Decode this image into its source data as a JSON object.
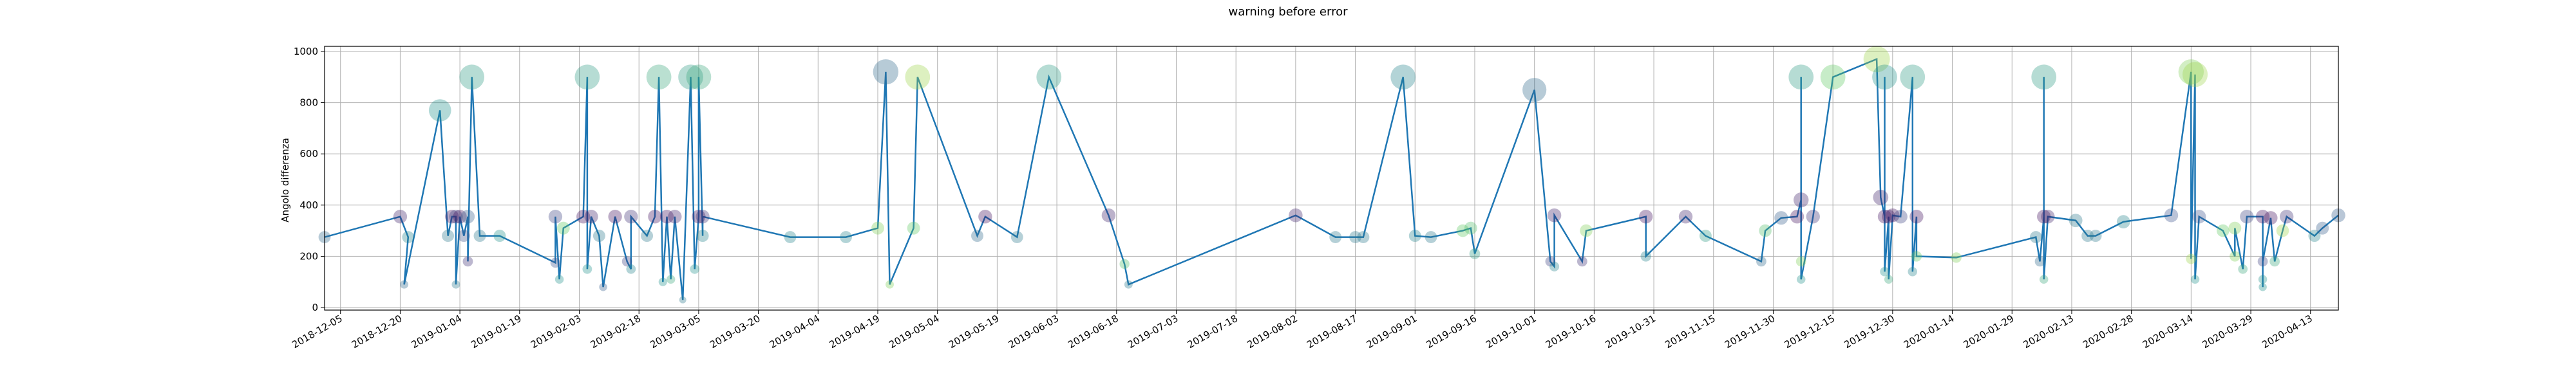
{
  "chart_data": {
    "type": "scatter",
    "title": "warning before error",
    "xlabel": "",
    "ylabel": "Angolo differenza",
    "xlim": [
      "2018-12-01",
      "2020-04-20"
    ],
    "ylim": [
      -10,
      1020
    ],
    "grid": true,
    "x_ticks": [
      "2018-12-05",
      "2018-12-20",
      "2019-01-04",
      "2019-01-19",
      "2019-02-03",
      "2019-02-18",
      "2019-03-05",
      "2019-03-20",
      "2019-04-04",
      "2019-04-19",
      "2019-05-04",
      "2019-05-19",
      "2019-06-03",
      "2019-06-18",
      "2019-07-03",
      "2019-07-18",
      "2019-08-02",
      "2019-08-17",
      "2019-09-01",
      "2019-09-16",
      "2019-10-01",
      "2019-10-16",
      "2019-10-31",
      "2019-11-15",
      "2019-11-30",
      "2019-12-15",
      "2019-12-30",
      "2020-01-14",
      "2020-01-29",
      "2020-02-13",
      "2020-02-28",
      "2020-03-14",
      "2020-03-29",
      "2020-04-13"
    ],
    "y_ticks": [
      0,
      200,
      400,
      600,
      800,
      1000
    ],
    "line_color": "#1f77b4",
    "colormap": [
      "#440154",
      "#3b528b",
      "#21918c",
      "#5ec962",
      "#fde725"
    ],
    "points": [
      {
        "x": "2018-12-01",
        "y": 275,
        "c": 0.35
      },
      {
        "x": "2018-12-20",
        "y": 355,
        "c": 0.1
      },
      {
        "x": "2018-12-22",
        "y": 275,
        "c": 0.45
      },
      {
        "x": "2018-12-21",
        "y": 90,
        "c": 0.35
      },
      {
        "x": "2018-12-30",
        "y": 770,
        "c": 0.5
      },
      {
        "x": "2019-01-01",
        "y": 280,
        "c": 0.4
      },
      {
        "x": "2019-01-02",
        "y": 355,
        "c": 0.05
      },
      {
        "x": "2019-01-03",
        "y": 355,
        "c": 0.2
      },
      {
        "x": "2019-01-03",
        "y": 90,
        "c": 0.4
      },
      {
        "x": "2019-01-04",
        "y": 355,
        "c": 0.05
      },
      {
        "x": "2019-01-05",
        "y": 280,
        "c": 0.25
      },
      {
        "x": "2019-01-06",
        "y": 355,
        "c": 0.3
      },
      {
        "x": "2019-01-06",
        "y": 180,
        "c": 0.15
      },
      {
        "x": "2019-01-07",
        "y": 900,
        "c": 0.55
      },
      {
        "x": "2019-01-09",
        "y": 280,
        "c": 0.4
      },
      {
        "x": "2019-01-14",
        "y": 280,
        "c": 0.5
      },
      {
        "x": "2019-01-28",
        "y": 175,
        "c": 0.25
      },
      {
        "x": "2019-01-28",
        "y": 355,
        "c": 0.2
      },
      {
        "x": "2019-01-29",
        "y": 110,
        "c": 0.5
      },
      {
        "x": "2019-01-30",
        "y": 310,
        "c": 0.75
      },
      {
        "x": "2019-02-04",
        "y": 355,
        "c": 0.05
      },
      {
        "x": "2019-02-05",
        "y": 900,
        "c": 0.55
      },
      {
        "x": "2019-02-05",
        "y": 150,
        "c": 0.5
      },
      {
        "x": "2019-02-06",
        "y": 355,
        "c": 0.1
      },
      {
        "x": "2019-02-08",
        "y": 280,
        "c": 0.4
      },
      {
        "x": "2019-02-09",
        "y": 80,
        "c": 0.3
      },
      {
        "x": "2019-02-12",
        "y": 355,
        "c": 0.05
      },
      {
        "x": "2019-02-15",
        "y": 180,
        "c": 0.2
      },
      {
        "x": "2019-02-16",
        "y": 150,
        "c": 0.45
      },
      {
        "x": "2019-02-16",
        "y": 355,
        "c": 0.15
      },
      {
        "x": "2019-02-20",
        "y": 280,
        "c": 0.4
      },
      {
        "x": "2019-02-22",
        "y": 355,
        "c": 0.05
      },
      {
        "x": "2019-02-23",
        "y": 900,
        "c": 0.6
      },
      {
        "x": "2019-02-24",
        "y": 100,
        "c": 0.5
      },
      {
        "x": "2019-02-25",
        "y": 355,
        "c": 0.05
      },
      {
        "x": "2019-02-26",
        "y": 110,
        "c": 0.6
      },
      {
        "x": "2019-02-27",
        "y": 355,
        "c": 0.1
      },
      {
        "x": "2019-03-01",
        "y": 30,
        "c": 0.4
      },
      {
        "x": "2019-03-03",
        "y": 900,
        "c": 0.55
      },
      {
        "x": "2019-03-04",
        "y": 150,
        "c": 0.5
      },
      {
        "x": "2019-03-05",
        "y": 355,
        "c": 0.05
      },
      {
        "x": "2019-03-05",
        "y": 900,
        "c": 0.6
      },
      {
        "x": "2019-03-06",
        "y": 280,
        "c": 0.45
      },
      {
        "x": "2019-03-06",
        "y": 355,
        "c": 0.15
      },
      {
        "x": "2019-03-28",
        "y": 275,
        "c": 0.45
      },
      {
        "x": "2019-04-11",
        "y": 275,
        "c": 0.45
      },
      {
        "x": "2019-04-19",
        "y": 310,
        "c": 0.8
      },
      {
        "x": "2019-04-21",
        "y": 920,
        "c": 0.35
      },
      {
        "x": "2019-04-22",
        "y": 90,
        "c": 0.8
      },
      {
        "x": "2019-04-28",
        "y": 310,
        "c": 0.75
      },
      {
        "x": "2019-04-29",
        "y": 900,
        "c": 0.85
      },
      {
        "x": "2019-05-14",
        "y": 280,
        "c": 0.35
      },
      {
        "x": "2019-05-16",
        "y": 355,
        "c": 0.05
      },
      {
        "x": "2019-05-24",
        "y": 275,
        "c": 0.4
      },
      {
        "x": "2019-06-01",
        "y": 900,
        "c": 0.55
      },
      {
        "x": "2019-06-16",
        "y": 360,
        "c": 0.1
      },
      {
        "x": "2019-06-20",
        "y": 170,
        "c": 0.7
      },
      {
        "x": "2019-06-21",
        "y": 90,
        "c": 0.4
      },
      {
        "x": "2019-08-02",
        "y": 360,
        "c": 0.1
      },
      {
        "x": "2019-08-12",
        "y": 275,
        "c": 0.4
      },
      {
        "x": "2019-08-17",
        "y": 275,
        "c": 0.4
      },
      {
        "x": "2019-08-19",
        "y": 275,
        "c": 0.4
      },
      {
        "x": "2019-08-29",
        "y": 900,
        "c": 0.45
      },
      {
        "x": "2019-09-01",
        "y": 280,
        "c": 0.45
      },
      {
        "x": "2019-09-05",
        "y": 275,
        "c": 0.4
      },
      {
        "x": "2019-09-13",
        "y": 300,
        "c": 0.75
      },
      {
        "x": "2019-09-15",
        "y": 310,
        "c": 0.7
      },
      {
        "x": "2019-09-16",
        "y": 210,
        "c": 0.55
      },
      {
        "x": "2019-10-01",
        "y": 850,
        "c": 0.35
      },
      {
        "x": "2019-10-05",
        "y": 180,
        "c": 0.2
      },
      {
        "x": "2019-10-06",
        "y": 160,
        "c": 0.45
      },
      {
        "x": "2019-10-06",
        "y": 360,
        "c": 0.1
      },
      {
        "x": "2019-10-13",
        "y": 180,
        "c": 0.15
      },
      {
        "x": "2019-10-14",
        "y": 300,
        "c": 0.8
      },
      {
        "x": "2019-10-29",
        "y": 355,
        "c": 0.05
      },
      {
        "x": "2019-10-29",
        "y": 200,
        "c": 0.45
      },
      {
        "x": "2019-11-08",
        "y": 355,
        "c": 0.1
      },
      {
        "x": "2019-11-13",
        "y": 280,
        "c": 0.55
      },
      {
        "x": "2019-11-27",
        "y": 180,
        "c": 0.35
      },
      {
        "x": "2019-11-28",
        "y": 300,
        "c": 0.7
      },
      {
        "x": "2019-12-02",
        "y": 350,
        "c": 0.3
      },
      {
        "x": "2019-12-06",
        "y": 355,
        "c": 0.05
      },
      {
        "x": "2019-12-07",
        "y": 420,
        "c": 0.1
      },
      {
        "x": "2019-12-07",
        "y": 900,
        "c": 0.55
      },
      {
        "x": "2019-12-07",
        "y": 180,
        "c": 0.8
      },
      {
        "x": "2019-12-07",
        "y": 110,
        "c": 0.5
      },
      {
        "x": "2019-12-10",
        "y": 355,
        "c": 0.15
      },
      {
        "x": "2019-12-15",
        "y": 900,
        "c": 0.75
      },
      {
        "x": "2019-12-26",
        "y": 970,
        "c": 0.85
      },
      {
        "x": "2019-12-27",
        "y": 430,
        "c": 0.1
      },
      {
        "x": "2019-12-28",
        "y": 355,
        "c": 0.05
      },
      {
        "x": "2019-12-28",
        "y": 900,
        "c": 0.5
      },
      {
        "x": "2019-12-28",
        "y": 140,
        "c": 0.5
      },
      {
        "x": "2019-12-29",
        "y": 355,
        "c": 0.1
      },
      {
        "x": "2019-12-29",
        "y": 110,
        "c": 0.6
      },
      {
        "x": "2019-12-30",
        "y": 360,
        "c": 0.05
      },
      {
        "x": "2020-01-01",
        "y": 355,
        "c": 0.2
      },
      {
        "x": "2020-01-04",
        "y": 900,
        "c": 0.55
      },
      {
        "x": "2020-01-04",
        "y": 140,
        "c": 0.45
      },
      {
        "x": "2020-01-05",
        "y": 355,
        "c": 0.05
      },
      {
        "x": "2020-01-05",
        "y": 200,
        "c": 0.75
      },
      {
        "x": "2020-01-15",
        "y": 195,
        "c": 0.8
      },
      {
        "x": "2020-02-04",
        "y": 275,
        "c": 0.4
      },
      {
        "x": "2020-02-05",
        "y": 180,
        "c": 0.35
      },
      {
        "x": "2020-02-06",
        "y": 355,
        "c": 0.05
      },
      {
        "x": "2020-02-06",
        "y": 900,
        "c": 0.55
      },
      {
        "x": "2020-02-06",
        "y": 110,
        "c": 0.6
      },
      {
        "x": "2020-02-07",
        "y": 355,
        "c": 0.1
      },
      {
        "x": "2020-02-14",
        "y": 340,
        "c": 0.4
      },
      {
        "x": "2020-02-17",
        "y": 280,
        "c": 0.4
      },
      {
        "x": "2020-02-19",
        "y": 280,
        "c": 0.4
      },
      {
        "x": "2020-02-26",
        "y": 335,
        "c": 0.45
      },
      {
        "x": "2020-03-09",
        "y": 360,
        "c": 0.25
      },
      {
        "x": "2020-03-14",
        "y": 920,
        "c": 0.8
      },
      {
        "x": "2020-03-14",
        "y": 190,
        "c": 0.85
      },
      {
        "x": "2020-03-15",
        "y": 910,
        "c": 0.85
      },
      {
        "x": "2020-03-15",
        "y": 110,
        "c": 0.5
      },
      {
        "x": "2020-03-16",
        "y": 355,
        "c": 0.25
      },
      {
        "x": "2020-03-22",
        "y": 300,
        "c": 0.75
      },
      {
        "x": "2020-03-25",
        "y": 200,
        "c": 0.8
      },
      {
        "x": "2020-03-25",
        "y": 310,
        "c": 0.8
      },
      {
        "x": "2020-03-27",
        "y": 150,
        "c": 0.6
      },
      {
        "x": "2020-03-28",
        "y": 355,
        "c": 0.2
      },
      {
        "x": "2020-04-01",
        "y": 355,
        "c": 0.05
      },
      {
        "x": "2020-04-01",
        "y": 110,
        "c": 0.5
      },
      {
        "x": "2020-04-01",
        "y": 80,
        "c": 0.5
      },
      {
        "x": "2020-04-01",
        "y": 180,
        "c": 0.2
      },
      {
        "x": "2020-04-03",
        "y": 350,
        "c": 0.05
      },
      {
        "x": "2020-04-04",
        "y": 180,
        "c": 0.6
      },
      {
        "x": "2020-04-06",
        "y": 300,
        "c": 0.85
      },
      {
        "x": "2020-04-07",
        "y": 355,
        "c": 0.15
      },
      {
        "x": "2020-04-14",
        "y": 280,
        "c": 0.45
      },
      {
        "x": "2020-04-16",
        "y": 310,
        "c": 0.3
      },
      {
        "x": "2020-04-20",
        "y": 360,
        "c": 0.3
      }
    ]
  }
}
